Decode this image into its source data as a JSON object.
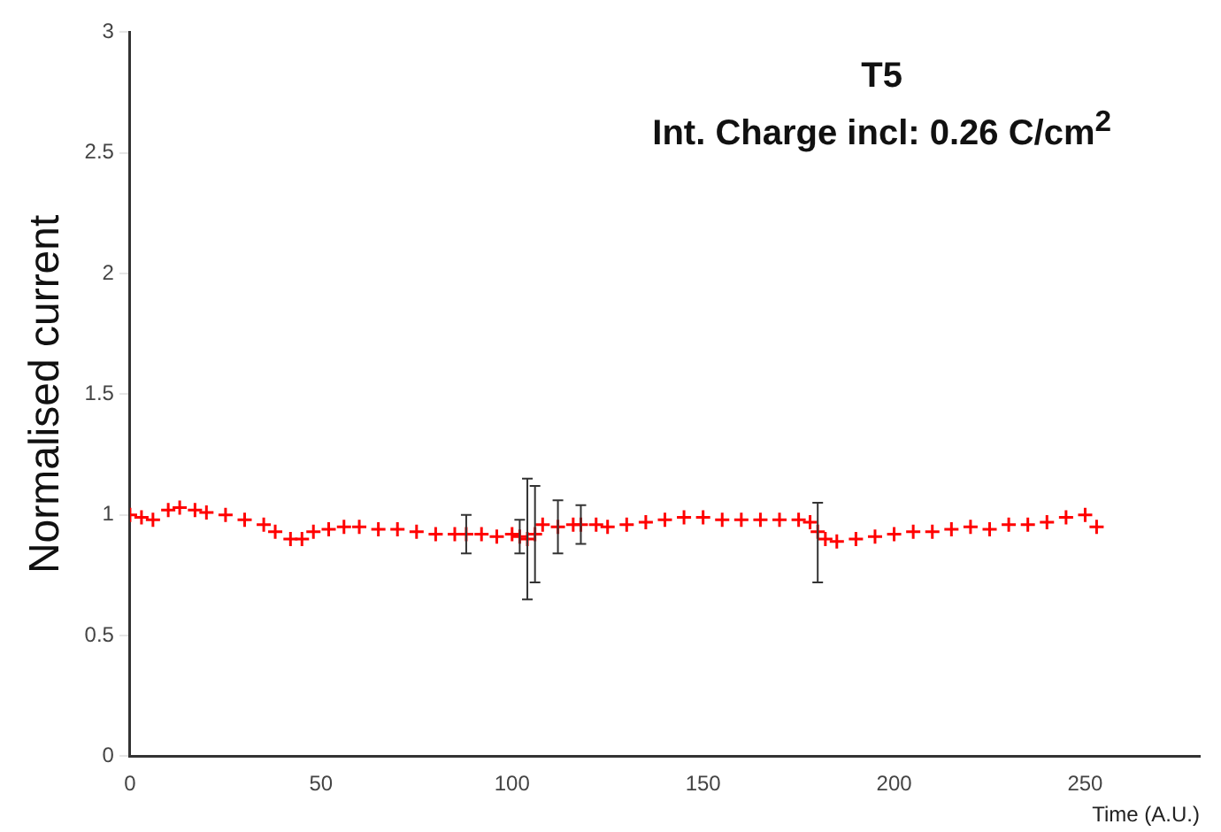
{
  "chart_data": {
    "type": "scatter",
    "title": "T5",
    "annotations": [
      "Int. Charge incl: 0.26 C/cm$^{2}$"
    ],
    "xlabel": "Time (A.U.)",
    "ylabel": "Normalised current",
    "x": [
      0,
      3,
      6,
      10,
      13,
      17,
      20,
      25,
      30,
      35,
      38,
      42,
      45,
      48,
      52,
      56,
      60,
      65,
      70,
      75,
      80,
      85,
      88,
      92,
      96,
      100,
      102,
      104,
      106,
      108,
      112,
      116,
      118,
      122,
      125,
      130,
      135,
      140,
      145,
      150,
      155,
      160,
      165,
      170,
      175,
      178,
      180,
      182,
      185,
      190,
      195,
      200,
      205,
      210,
      215,
      220,
      225,
      230,
      235,
      240,
      245,
      250,
      253
    ],
    "series": [
      {
        "color": "#ff0000",
        "values": [
          1.0,
          0.99,
          0.98,
          1.02,
          1.03,
          1.02,
          1.01,
          1.0,
          0.98,
          0.96,
          0.93,
          0.9,
          0.9,
          0.93,
          0.94,
          0.95,
          0.95,
          0.94,
          0.94,
          0.93,
          0.92,
          0.92,
          0.92,
          0.92,
          0.91,
          0.92,
          0.91,
          0.9,
          0.92,
          0.96,
          0.95,
          0.96,
          0.96,
          0.96,
          0.95,
          0.96,
          0.97,
          0.98,
          0.99,
          0.99,
          0.98,
          0.98,
          0.98,
          0.98,
          0.98,
          0.97,
          0.93,
          0.9,
          0.89,
          0.9,
          0.91,
          0.92,
          0.93,
          0.93,
          0.94,
          0.95,
          0.94,
          0.96,
          0.96,
          0.97,
          0.99,
          1.0,
          0.95
        ],
        "errors": [
          null,
          null,
          null,
          null,
          null,
          null,
          null,
          null,
          null,
          null,
          null,
          null,
          null,
          null,
          null,
          null,
          null,
          null,
          null,
          null,
          null,
          null,
          0.08,
          null,
          null,
          null,
          0.07,
          0.25,
          0.2,
          null,
          0.11,
          null,
          0.08,
          null,
          null,
          null,
          null,
          null,
          null,
          null,
          null,
          null,
          null,
          null,
          null,
          null,
          [
            0.72,
            1.05
          ],
          null,
          null,
          null,
          null,
          null,
          null,
          null,
          null,
          null,
          null,
          null,
          null,
          null,
          null,
          null,
          null
        ]
      }
    ],
    "marker": "cross",
    "xlim": [
      0,
      280
    ],
    "xticks": [
      0,
      50,
      100,
      150,
      200,
      250
    ],
    "ylim": [
      0,
      3
    ],
    "yticks": [
      0,
      0.5,
      1,
      1.5,
      2,
      2.5,
      3
    ],
    "grid": false,
    "legend": false
  }
}
